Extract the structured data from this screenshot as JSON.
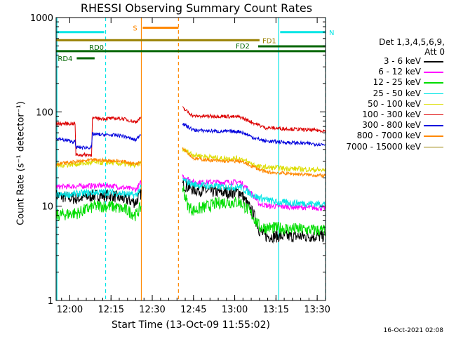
{
  "title": "RHESSI Observing Summary Count Rates",
  "xlabel": "Start Time (13-Oct-09 11:55:02)",
  "ylabel": "Count Rate (s⁻¹ detector⁻¹)",
  "timestamp": "16-Oct-2021 02:08",
  "legend": {
    "detectors": "Det 1,3,4,5,6,9,",
    "attenuator": "Att 0",
    "entries": [
      {
        "label": "3 - 6 keV",
        "color": "#000000"
      },
      {
        "label": "6 - 12 keV",
        "color": "#ff00ff"
      },
      {
        "label": "12 - 25 keV",
        "color": "#00dd00"
      },
      {
        "label": "25 - 50 keV",
        "color": "#00e5e5"
      },
      {
        "label": "50 - 100 keV",
        "color": "#dddd00"
      },
      {
        "label": "100 - 300 keV",
        "color": "#dd0000"
      },
      {
        "label": "300 - 800 keV",
        "color": "#0000dd"
      },
      {
        "label": "800 - 7000 keV",
        "color": "#ff8800"
      },
      {
        "label": "7000 - 15000 keV",
        "color": "#998000"
      }
    ]
  },
  "chart_data": {
    "type": "line",
    "y_scale": "log",
    "ylim": [
      1,
      1000
    ],
    "xlim_minutes_after_start": [
      0,
      98
    ],
    "start_time": "11:55:02",
    "x_ticks": [
      {
        "label": "12:00",
        "minute": 4.97
      },
      {
        "label": "12:15",
        "minute": 19.97
      },
      {
        "label": "12:30",
        "minute": 34.97
      },
      {
        "label": "12:45",
        "minute": 49.97
      },
      {
        "label": "13:00",
        "minute": 64.97
      },
      {
        "label": "13:15",
        "minute": 79.97
      },
      {
        "label": "13:30",
        "minute": 94.97
      }
    ],
    "y_ticks": [
      {
        "label": "1",
        "value": 1
      },
      {
        "label": "10",
        "value": 10
      },
      {
        "label": "100",
        "value": 100
      },
      {
        "label": "1000",
        "value": 1000
      }
    ],
    "flag_bars": [
      {
        "label": "N",
        "color": "#00e5e5",
        "y": 700,
        "segments": [
          [
            0,
            17.5
          ],
          [
            81.5,
            98
          ]
        ]
      },
      {
        "label": "S",
        "color": "#ff8800",
        "y": 780,
        "segments": [
          [
            31.5,
            44.5
          ]
        ]
      },
      {
        "label": "FD1",
        "color": "#998000",
        "y": 575,
        "segments": [
          [
            0,
            74
          ]
        ]
      },
      {
        "label": "FD2",
        "color": "#006600",
        "y": 495,
        "segments": [
          [
            73.5,
            98
          ]
        ]
      },
      {
        "label": "RD0",
        "color": "#006600",
        "y": 440,
        "segments": [
          [
            0,
            98
          ]
        ]
      },
      {
        "label": "RD4",
        "color": "#006600",
        "y": 370,
        "segments": [
          [
            7.5,
            14
          ]
        ]
      }
    ],
    "vertical_lines": [
      {
        "minute": 0.3,
        "color": "#00e5e5",
        "style": "solid"
      },
      {
        "minute": 18,
        "color": "#00e5e5",
        "style": "dashed"
      },
      {
        "minute": 31,
        "color": "#ff8800",
        "style": "solid"
      },
      {
        "minute": 44.5,
        "color": "#ff8800",
        "style": "dashed"
      },
      {
        "minute": 81,
        "color": "#00e5e5",
        "style": "solid"
      },
      {
        "minute": 98,
        "color": "#00e5e5",
        "style": "dashed"
      }
    ],
    "data_gap_minutes": [
      31,
      46
    ],
    "series": [
      {
        "name": "3 - 6 keV",
        "color": "#000000",
        "noise": 0.07,
        "points": [
          [
            0,
            13
          ],
          [
            7,
            12
          ],
          [
            14,
            13
          ],
          [
            20,
            13
          ],
          [
            29,
            11
          ],
          [
            31,
            14
          ],
          [
            46,
            17
          ],
          [
            50,
            15
          ],
          [
            60,
            14
          ],
          [
            67,
            14
          ],
          [
            70,
            10
          ],
          [
            72,
            8
          ],
          [
            74,
            5.5
          ],
          [
            76,
            4.8
          ],
          [
            98,
            4.8
          ]
        ]
      },
      {
        "name": "6 - 12 keV",
        "color": "#ff00ff",
        "noise": 0.03,
        "points": [
          [
            0,
            16
          ],
          [
            14,
            16.5
          ],
          [
            20,
            16.5
          ],
          [
            29,
            15
          ],
          [
            31,
            18
          ],
          [
            46,
            21
          ],
          [
            50,
            18
          ],
          [
            60,
            18
          ],
          [
            67,
            18
          ],
          [
            70,
            15
          ],
          [
            74,
            10.5
          ],
          [
            78,
            10
          ],
          [
            98,
            9.5
          ]
        ]
      },
      {
        "name": "12 - 25 keV",
        "color": "#00dd00",
        "noise": 0.07,
        "points": [
          [
            0,
            8
          ],
          [
            8,
            8.5
          ],
          [
            14,
            10
          ],
          [
            20,
            10
          ],
          [
            26,
            9
          ],
          [
            29,
            8
          ],
          [
            31,
            10
          ],
          [
            46,
            16
          ],
          [
            48,
            10
          ],
          [
            50,
            9
          ],
          [
            60,
            11
          ],
          [
            67,
            11
          ],
          [
            70,
            9
          ],
          [
            72,
            7.5
          ],
          [
            74,
            6
          ],
          [
            98,
            5.5
          ]
        ]
      },
      {
        "name": "25 - 50 keV",
        "color": "#00e5e5",
        "noise": 0.04,
        "points": [
          [
            0,
            13
          ],
          [
            14,
            14
          ],
          [
            20,
            14
          ],
          [
            29,
            13
          ],
          [
            31,
            16
          ],
          [
            46,
            19
          ],
          [
            50,
            17
          ],
          [
            60,
            16
          ],
          [
            67,
            16
          ],
          [
            70,
            14
          ],
          [
            73,
            12.5
          ],
          [
            80,
            11
          ],
          [
            98,
            10.5
          ]
        ]
      },
      {
        "name": "50 - 100 keV",
        "color": "#dddd00",
        "noise": 0.03,
        "points": [
          [
            0,
            27
          ],
          [
            14,
            29
          ],
          [
            20,
            29
          ],
          [
            29,
            27
          ],
          [
            31,
            29
          ],
          [
            46,
            40
          ],
          [
            50,
            35
          ],
          [
            60,
            32
          ],
          [
            67,
            32
          ],
          [
            70,
            29
          ],
          [
            74,
            26
          ],
          [
            98,
            24
          ]
        ]
      },
      {
        "name": "100 - 300 keV",
        "color": "#dd0000",
        "noise": 0.02,
        "points": [
          [
            0,
            75
          ],
          [
            7,
            75
          ],
          [
            7.1,
            35
          ],
          [
            13,
            35
          ],
          [
            13.1,
            85
          ],
          [
            24,
            85
          ],
          [
            29,
            78
          ],
          [
            31,
            88
          ],
          [
            46,
            110
          ],
          [
            50,
            90
          ],
          [
            60,
            90
          ],
          [
            67,
            88
          ],
          [
            72,
            76
          ],
          [
            76,
            68
          ],
          [
            98,
            63
          ]
        ]
      },
      {
        "name": "300 - 800 keV",
        "color": "#0000dd",
        "noise": 0.02,
        "points": [
          [
            0,
            52
          ],
          [
            7,
            48
          ],
          [
            7.1,
            42
          ],
          [
            13,
            42
          ],
          [
            13.1,
            58
          ],
          [
            24,
            56
          ],
          [
            29,
            50
          ],
          [
            31,
            60
          ],
          [
            46,
            75
          ],
          [
            50,
            64
          ],
          [
            60,
            62
          ],
          [
            67,
            62
          ],
          [
            72,
            53
          ],
          [
            76,
            49
          ],
          [
            98,
            45
          ]
        ]
      },
      {
        "name": "800 - 7000 keV",
        "color": "#ff8800",
        "noise": 0.02,
        "points": [
          [
            0,
            28
          ],
          [
            14,
            31
          ],
          [
            24,
            30
          ],
          [
            29,
            28
          ],
          [
            31,
            30
          ],
          [
            46,
            42
          ],
          [
            50,
            32
          ],
          [
            60,
            30
          ],
          [
            67,
            30
          ],
          [
            72,
            26
          ],
          [
            76,
            23
          ],
          [
            98,
            21
          ]
        ]
      },
      {
        "name": "7000 - 15000 keV",
        "color": "#998000",
        "noise": 0.02,
        "points": []
      }
    ]
  }
}
